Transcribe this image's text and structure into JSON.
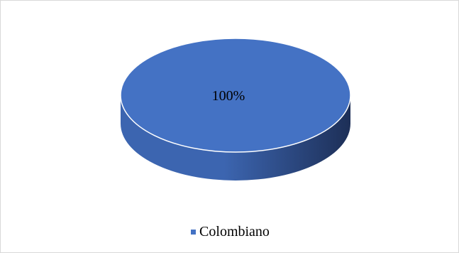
{
  "chart_data": {
    "type": "pie",
    "style": "3d",
    "title": "",
    "categories": [
      "Colombiano"
    ],
    "values": [
      100
    ],
    "data_labels": [
      "100%"
    ],
    "legend": "bottom",
    "colors": {
      "top": "#4472c4",
      "side_light": "#3c65b0",
      "side_dark": "#1d2f57",
      "rim": "#ffffff",
      "frame": "#d9d9d9"
    }
  }
}
